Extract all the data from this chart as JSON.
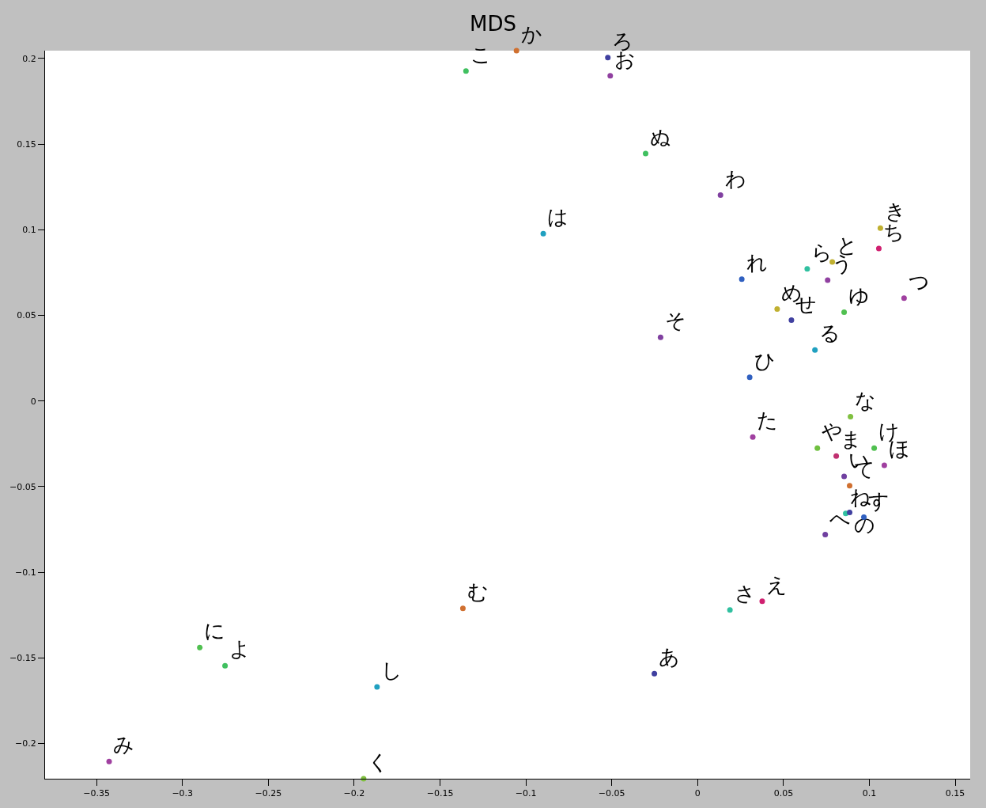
{
  "chart_data": {
    "type": "scatter",
    "title": "MDS",
    "xlim": [
      -0.38,
      0.1587
    ],
    "ylim": [
      -0.2206,
      0.2046
    ],
    "xticks": [
      -0.35,
      -0.3,
      -0.25,
      -0.2,
      -0.15,
      -0.1,
      -0.05,
      0,
      0.05,
      0.1,
      0.15
    ],
    "yticks": [
      -0.2,
      -0.15,
      -0.1,
      -0.05,
      0,
      0.05,
      0.1,
      0.15,
      0.2
    ],
    "legend": false,
    "marker": "circle",
    "series": [
      {
        "name": "か",
        "color": "#d07030",
        "x": [
          -0.1055
        ],
        "values": [
          0.2046
        ]
      },
      {
        "name": "こ",
        "color": "#40c060",
        "x": [
          -0.1349
        ],
        "values": [
          0.1927
        ]
      },
      {
        "name": "ろ",
        "color": "#4040a0",
        "x": [
          -0.0523
        ],
        "values": [
          0.2005
        ]
      },
      {
        "name": "お",
        "color": "#9040a0",
        "x": [
          -0.0509
        ],
        "values": [
          0.1899
        ]
      },
      {
        "name": "ぬ",
        "color": "#40c060",
        "x": [
          -0.0303
        ],
        "values": [
          0.1445
        ]
      },
      {
        "name": "わ",
        "color": "#8040a0",
        "x": [
          0.0133
        ],
        "values": [
          0.1202
        ]
      },
      {
        "name": "は",
        "color": "#20a0c0",
        "x": [
          -0.0899
        ],
        "values": [
          0.0977
        ]
      },
      {
        "name": "き",
        "color": "#c0b030",
        "x": [
          0.1064
        ],
        "values": [
          0.1009
        ]
      },
      {
        "name": "ち",
        "color": "#d02070",
        "x": [
          0.1055
        ],
        "values": [
          0.089
        ]
      },
      {
        "name": "ら",
        "color": "#30c0a0",
        "x": [
          0.0638
        ],
        "values": [
          0.0771
        ]
      },
      {
        "name": "と",
        "color": "#c0b030",
        "x": [
          0.0784
        ],
        "values": [
          0.0812
        ]
      },
      {
        "name": "う",
        "color": "#9040a0",
        "x": [
          0.0757
        ],
        "values": [
          0.0706
        ]
      },
      {
        "name": "れ",
        "color": "#3060c0",
        "x": [
          0.0257
        ],
        "values": [
          0.0711
        ]
      },
      {
        "name": "つ",
        "color": "#a040a0",
        "x": [
          0.1202
        ],
        "values": [
          0.0601
        ]
      },
      {
        "name": "ゆ",
        "color": "#50c050",
        "x": [
          0.0853
        ],
        "values": [
          0.0518
        ]
      },
      {
        "name": "め",
        "color": "#c0b030",
        "x": [
          0.0463
        ],
        "values": [
          0.0537
        ]
      },
      {
        "name": "せ",
        "color": "#4040a0",
        "x": [
          0.0546
        ],
        "values": [
          0.0472
        ]
      },
      {
        "name": "る",
        "color": "#20a0c0",
        "x": [
          0.0683
        ],
        "values": [
          0.0298
        ]
      },
      {
        "name": "そ",
        "color": "#8040a0",
        "x": [
          -0.0216
        ],
        "values": [
          0.0372
        ]
      },
      {
        "name": "ひ",
        "color": "#3060c0",
        "x": [
          0.0303
        ],
        "values": [
          0.0138
        ]
      },
      {
        "name": "な",
        "color": "#80c040",
        "x": [
          0.089
        ],
        "values": [
          -0.0092
        ]
      },
      {
        "name": "た",
        "color": "#a040a0",
        "x": [
          0.0321
        ],
        "values": [
          -0.0211
        ]
      },
      {
        "name": "や",
        "color": "#70c040",
        "x": [
          0.0697
        ],
        "values": [
          -0.0275
        ]
      },
      {
        "name": "ま",
        "color": "#c03070",
        "x": [
          0.0807
        ],
        "values": [
          -0.0321
        ]
      },
      {
        "name": "け",
        "color": "#50c050",
        "x": [
          0.1028
        ],
        "values": [
          -0.0275
        ]
      },
      {
        "name": "ほ",
        "color": "#a040a0",
        "x": [
          0.1087
        ],
        "values": [
          -0.0376
        ]
      },
      {
        "name": "い",
        "color": "#7040a0",
        "x": [
          0.0853
        ],
        "values": [
          -0.044
        ]
      },
      {
        "name": "て",
        "color": "#d07030",
        "x": [
          0.0885
        ],
        "values": [
          -0.0495
        ]
      },
      {
        "name": "ね",
        "color": "#30c0a0",
        "x": [
          0.0862
        ],
        "values": [
          -0.0656
        ]
      },
      {
        "name": "の",
        "color": "#4040a0",
        "x": [
          0.0885
        ],
        "values": [
          -0.0651
        ]
      },
      {
        "name": "す",
        "color": "#3060c0",
        "x": [
          0.0968
        ],
        "values": [
          -0.0679
        ]
      },
      {
        "name": "へ",
        "color": "#7040a0",
        "x": [
          0.0743
        ],
        "values": [
          -0.078
        ]
      },
      {
        "name": "え",
        "color": "#d02070",
        "x": [
          0.0376
        ],
        "values": [
          -0.117
        ]
      },
      {
        "name": "さ",
        "color": "#30c0a0",
        "x": [
          0.0188
        ],
        "values": [
          -0.122
        ]
      },
      {
        "name": "む",
        "color": "#d07030",
        "x": [
          -0.1367
        ],
        "values": [
          -0.1211
        ]
      },
      {
        "name": "に",
        "color": "#50c050",
        "x": [
          -0.2899
        ],
        "values": [
          -0.144
        ]
      },
      {
        "name": "よ",
        "color": "#40c060",
        "x": [
          -0.2752
        ],
        "values": [
          -0.1546
        ]
      },
      {
        "name": "し",
        "color": "#20a0c0",
        "x": [
          -0.1867
        ],
        "values": [
          -0.167
        ]
      },
      {
        "name": "あ",
        "color": "#4040a0",
        "x": [
          -0.0252
        ],
        "values": [
          -0.1592
        ]
      },
      {
        "name": "み",
        "color": "#a040a0",
        "x": [
          -0.3427
        ],
        "values": [
          -0.2106
        ]
      },
      {
        "name": "く",
        "color": "#80c040",
        "x": [
          -0.1945
        ],
        "values": [
          -0.2206
        ]
      }
    ]
  }
}
